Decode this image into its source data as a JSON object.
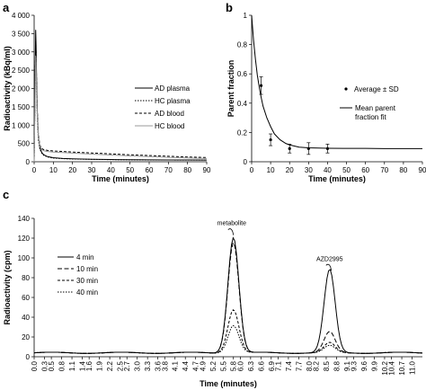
{
  "chart_data": [
    {
      "panel": "a",
      "type": "line",
      "xlabel": "Time (minutes)",
      "ylabel": "Radioactivity (kBq/ml)",
      "xlim": [
        0,
        90
      ],
      "ylim": [
        0,
        4000
      ],
      "xticks": [
        0,
        10,
        20,
        30,
        40,
        50,
        60,
        70,
        80,
        90
      ],
      "yticks": [
        0,
        500,
        1000,
        1500,
        2000,
        2500,
        3000,
        3500,
        4000
      ],
      "ytick_labels": [
        "0",
        "500",
        "1 000",
        "1 500",
        "2 000",
        "2 500",
        "3 000",
        "3 500",
        "4 000"
      ],
      "legend_position": "right",
      "series": [
        {
          "name": "AD plasma",
          "style": "solid",
          "color": "#000000",
          "x": [
            0,
            0.5,
            0.8,
            1,
            1.3,
            1.7,
            2.2,
            3,
            4,
            5,
            7,
            10,
            15,
            20,
            30,
            40,
            50,
            60,
            70,
            80,
            90
          ],
          "y": [
            0,
            2400,
            3600,
            3200,
            2200,
            1300,
            700,
            380,
            250,
            190,
            140,
            110,
            90,
            80,
            68,
            60,
            55,
            52,
            50,
            48,
            47
          ]
        },
        {
          "name": "HC plasma",
          "style": "dotted",
          "color": "#000000",
          "x": [
            0,
            0.5,
            0.8,
            1,
            1.3,
            1.7,
            2.2,
            3,
            4,
            5,
            7,
            10,
            15,
            20,
            30,
            40,
            50,
            60,
            70,
            80,
            90
          ],
          "y": [
            0,
            2000,
            3100,
            2800,
            1900,
            1100,
            600,
            340,
            230,
            175,
            130,
            100,
            85,
            75,
            65,
            58,
            53,
            50,
            48,
            46,
            45
          ]
        },
        {
          "name": "AD blood",
          "style": "dashed",
          "color": "#000000",
          "x": [
            0,
            0.5,
            0.8,
            1,
            1.3,
            1.7,
            2.2,
            3,
            4,
            5,
            7,
            10,
            15,
            20,
            30,
            40,
            50,
            60,
            70,
            80,
            90
          ],
          "y": [
            0,
            2100,
            3300,
            3000,
            2100,
            1300,
            750,
            450,
            360,
            330,
            310,
            295,
            280,
            265,
            240,
            215,
            190,
            170,
            150,
            130,
            115
          ]
        },
        {
          "name": "HC blood",
          "style": "solid-gray",
          "color": "#999999",
          "x": [
            0,
            0.5,
            0.8,
            1,
            1.3,
            1.7,
            2.2,
            3,
            4,
            5,
            7,
            10,
            15,
            20,
            30,
            40,
            50,
            60,
            70,
            80,
            90
          ],
          "y": [
            0,
            1800,
            2900,
            2700,
            1900,
            1200,
            700,
            420,
            330,
            300,
            280,
            265,
            250,
            235,
            210,
            185,
            160,
            140,
            120,
            105,
            90
          ]
        }
      ]
    },
    {
      "panel": "b",
      "type": "scatter",
      "xlabel": "Time (minutes)",
      "ylabel": "Parent fraction",
      "xlim": [
        0,
        90
      ],
      "ylim": [
        0,
        1
      ],
      "xticks": [
        0,
        10,
        20,
        30,
        40,
        50,
        60,
        70,
        80,
        90
      ],
      "yticks": [
        0,
        0.2,
        0.4,
        0.6,
        0.8,
        1
      ],
      "ytick_labels": [
        "0",
        "0.2",
        "0.4",
        "0.6",
        "0.8",
        "1"
      ],
      "legend_position": "right",
      "series": [
        {
          "name": "Average ± SD",
          "style": "points",
          "x": [
            5,
            10,
            20,
            30,
            40
          ],
          "y": [
            0.52,
            0.15,
            0.09,
            0.09,
            0.09
          ],
          "sd": [
            0.06,
            0.04,
            0.03,
            0.04,
            0.03
          ]
        },
        {
          "name": "Mean parent fraction fit",
          "style": "solid",
          "x": [
            0,
            1,
            2,
            3,
            4,
            5,
            6,
            8,
            10,
            12,
            15,
            18,
            20,
            25,
            30,
            40,
            50,
            60,
            70,
            80,
            90
          ],
          "y": [
            1.0,
            0.83,
            0.7,
            0.59,
            0.51,
            0.44,
            0.38,
            0.3,
            0.24,
            0.19,
            0.15,
            0.125,
            0.115,
            0.1,
            0.095,
            0.092,
            0.091,
            0.091,
            0.09,
            0.09,
            0.09
          ]
        }
      ]
    },
    {
      "panel": "c",
      "type": "line",
      "xlabel": "Time (minutes)",
      "ylabel": "Radioactivity (cpm)",
      "xlim": [
        0,
        11.3
      ],
      "ylim": [
        0,
        140
      ],
      "xticks": [
        0.0,
        0.3,
        0.5,
        0.8,
        1.1,
        1.4,
        1.6,
        1.9,
        2.2,
        2.5,
        2.7,
        3.0,
        3.3,
        3.6,
        3.8,
        4.1,
        4.4,
        4.7,
        4.9,
        5.2,
        5.5,
        5.8,
        6.0,
        6.3,
        6.6,
        6.9,
        7.1,
        7.4,
        7.7,
        8.0,
        8.2,
        8.5,
        8.8,
        9.1,
        9.3,
        9.6,
        9.9,
        10.2,
        10.4,
        10.7,
        11.0
      ],
      "yticks": [
        0,
        20,
        40,
        60,
        80,
        100,
        120,
        140
      ],
      "ytick_labels": [
        "0",
        "20",
        "40",
        "60",
        "80",
        "100",
        "120",
        "140"
      ],
      "legend_position": "left",
      "annotations": [
        {
          "text": "metabolite",
          "x": 5.75,
          "y": 133
        },
        {
          "text": "AZD2995",
          "x": 8.6,
          "y": 97
        }
      ],
      "baseline": 4,
      "series": [
        {
          "name": "4 min",
          "style": "solid",
          "peaks": [
            {
              "center": 5.8,
              "height": 117,
              "width": 0.16
            },
            {
              "center": 8.6,
              "height": 84,
              "width": 0.16
            }
          ]
        },
        {
          "name": "10 min",
          "style": "longdash",
          "peaks": [
            {
              "center": 5.8,
              "height": 112,
              "width": 0.16
            },
            {
              "center": 8.6,
              "height": 21,
              "width": 0.16
            }
          ]
        },
        {
          "name": "30 min",
          "style": "dashed",
          "peaks": [
            {
              "center": 5.8,
              "height": 44,
              "width": 0.16
            },
            {
              "center": 8.6,
              "height": 10,
              "width": 0.16
            }
          ]
        },
        {
          "name": "40 min",
          "style": "dotted",
          "peaks": [
            {
              "center": 5.8,
              "height": 28,
              "width": 0.16
            },
            {
              "center": 8.6,
              "height": 7,
              "width": 0.16
            }
          ]
        }
      ]
    }
  ]
}
